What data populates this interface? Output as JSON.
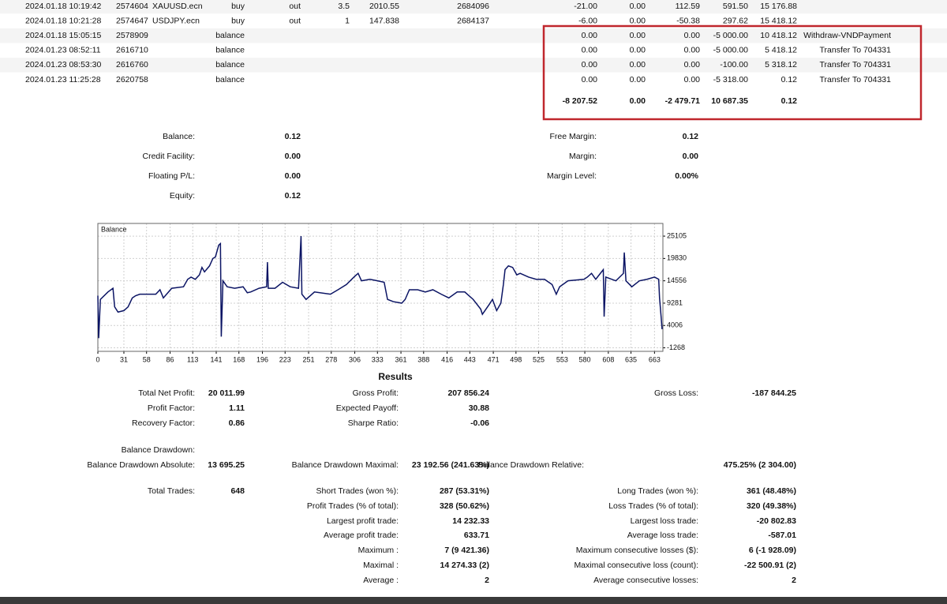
{
  "trades": {
    "rows": [
      {
        "time": "2024.01.18 10:19:42",
        "deal": "2574604",
        "symbol": "XAUUSD.ecn",
        "type": "buy",
        "direction": "out",
        "volume": "3.5",
        "price": "2010.55",
        "order": "2684096",
        "commission": "-21.00",
        "fee": "0.00",
        "swap": "112.59",
        "profit": "591.50",
        "balance": "15 176.88"
      },
      {
        "time": "2024.01.18 10:21:28",
        "deal": "2574647",
        "symbol": "USDJPY.ecn",
        "type": "buy",
        "direction": "out",
        "volume": "1",
        "price": "147.838",
        "order": "2684137",
        "commission": "-6.00",
        "fee": "0.00",
        "swap": "-50.38",
        "profit": "297.62",
        "balance": "15 418.12"
      },
      {
        "time": "2024.01.18 15:05:15",
        "deal": "2578909",
        "type": "balance",
        "commission": "0.00",
        "fee": "0.00",
        "swap": "0.00",
        "profit": "-5 000.00",
        "balance": "10 418.12",
        "comment": "Withdraw-VNDPayment"
      },
      {
        "time": "2024.01.23 08:52:11",
        "deal": "2616710",
        "type": "balance",
        "commission": "0.00",
        "fee": "0.00",
        "swap": "0.00",
        "profit": "-5 000.00",
        "balance": "5 418.12",
        "comment": "Transfer To 704331"
      },
      {
        "time": "2024.01.23 08:53:30",
        "deal": "2616760",
        "type": "balance",
        "commission": "0.00",
        "fee": "0.00",
        "swap": "0.00",
        "profit": "-100.00",
        "balance": "5 318.12",
        "comment": "Transfer To 704331"
      },
      {
        "time": "2024.01.23 11:25:28",
        "deal": "2620758",
        "type": "balance",
        "commission": "0.00",
        "fee": "0.00",
        "swap": "0.00",
        "profit": "-5 318.00",
        "balance": "0.12",
        "comment": "Transfer To 704331"
      }
    ],
    "totals": {
      "commission": "-8 207.52",
      "fee": "0.00",
      "swap": "-2 479.71",
      "profit": "10 687.35",
      "balance": "0.12"
    }
  },
  "summary": {
    "left": [
      {
        "label": "Balance:",
        "value": "0.12"
      },
      {
        "label": "Credit Facility:",
        "value": "0.00"
      },
      {
        "label": "Floating P/L:",
        "value": "0.00"
      },
      {
        "label": "Equity:",
        "value": "0.12"
      }
    ],
    "right": [
      {
        "label": "Free Margin:",
        "value": "0.12"
      },
      {
        "label": "Margin:",
        "value": "0.00"
      },
      {
        "label": "Margin Level:",
        "value": "0.00%"
      }
    ]
  },
  "chart_data": {
    "type": "line",
    "x": [
      0,
      1,
      3,
      12,
      18,
      20,
      24,
      31,
      36,
      41,
      45,
      50,
      69,
      74,
      78,
      88,
      102,
      107,
      111,
      116,
      121,
      124,
      127,
      133,
      137,
      140,
      144,
      146,
      147,
      149,
      154,
      163,
      173,
      178,
      182,
      192,
      201,
      202,
      203,
      211,
      220,
      229,
      239,
      242,
      243,
      248,
      258,
      277,
      286,
      296,
      305,
      310,
      314,
      324,
      333,
      341,
      345,
      352,
      362,
      366,
      371,
      381,
      390,
      399,
      409,
      418,
      428,
      437,
      447,
      456,
      458,
      466,
      470,
      475,
      480,
      483,
      485,
      489,
      494,
      499,
      503,
      513,
      522,
      532,
      541,
      546,
      550,
      560,
      579,
      583,
      588,
      593,
      602,
      603,
      605,
      617,
      626,
      627,
      629,
      636,
      645,
      654,
      663,
      668,
      669,
      671,
      672
    ],
    "series": [
      {
        "name": "Balance",
        "color": "#0b1464",
        "values": [
          11040,
          1016,
          10159,
          11918,
          12797,
          8401,
          7170,
          7522,
          8401,
          10511,
          11039,
          11391,
          11391,
          12445,
          10511,
          12797,
          13149,
          14907,
          15434,
          14907,
          15962,
          17720,
          16665,
          18072,
          19830,
          20182,
          22995,
          23347,
          1368,
          14555,
          13149,
          12797,
          13149,
          11742,
          11918,
          12797,
          13149,
          18951,
          12797,
          12797,
          14204,
          13149,
          12797,
          25105,
          11391,
          10159,
          11918,
          11391,
          12445,
          13676,
          15434,
          16313,
          14555,
          14907,
          14555,
          14204,
          10159,
          9632,
          9280,
          10159,
          12445,
          12445,
          11918,
          12445,
          11391,
          10511,
          11918,
          11918,
          10159,
          7874,
          6643,
          8929,
          10159,
          7522,
          9280,
          13676,
          17193,
          18072,
          17720,
          15962,
          16313,
          15434,
          14907,
          14907,
          13676,
          11391,
          13149,
          14555,
          14907,
          15434,
          16313,
          14907,
          17193,
          6115,
          15434,
          14555,
          16313,
          21237,
          14555,
          13149,
          14555,
          14907,
          15434,
          14907,
          10511,
          5764,
          3126
        ]
      }
    ],
    "xlim": [
      0,
      673
    ],
    "xticks": [
      0,
      31,
      58,
      86,
      113,
      141,
      168,
      196,
      223,
      251,
      278,
      306,
      333,
      361,
      388,
      416,
      443,
      471,
      498,
      525,
      553,
      580,
      608,
      635,
      663
    ],
    "ylim": [
      -2100,
      28100
    ],
    "yticks": [
      25105,
      19830,
      14556,
      9281,
      4006,
      -1268
    ],
    "grid": true
  },
  "results": {
    "title": "Results",
    "columns": [
      [
        {
          "label": "Total Net Profit:",
          "value": "20 011.99"
        },
        {
          "label": "Profit Factor:",
          "value": "1.11"
        },
        {
          "label": "Recovery Factor:",
          "value": "0.86"
        },
        {
          "label": "Balance Drawdown:"
        },
        {
          "label": "Balance Drawdown Absolute:",
          "value": "13 695.25"
        },
        {
          "label": "Total Trades:",
          "value": "648"
        }
      ],
      [
        {
          "label": "Gross Profit:",
          "value": "207 856.24"
        },
        {
          "label": "Expected Payoff:",
          "value": "30.88"
        },
        {
          "label": "Sharpe Ratio:",
          "value": "-0.06"
        },
        {
          "label": "Balance Drawdown Maximal:",
          "value": "23 192.56 (241.63%)"
        },
        {
          "label": "Short Trades (won %):",
          "value": "287 (53.31%)"
        },
        {
          "label": "Profit Trades (% of total):",
          "value": "328 (50.62%)"
        },
        {
          "label": "Largest profit trade:",
          "value": "14 232.33"
        },
        {
          "label": "Average profit trade:",
          "value": "633.71"
        },
        {
          "label": "Maximum :",
          "value": "7 (9 421.36)"
        },
        {
          "label": "Maximal :",
          "value": "14 274.33 (2)"
        },
        {
          "label": "Average :",
          "value": "2"
        }
      ],
      [
        {
          "label": "Gross Loss:",
          "value": "-187 844.25"
        },
        {
          "label": "Balance Drawdown Relative:",
          "value": "475.25% (2 304.00)"
        },
        {
          "label": "Long Trades (won %):",
          "value": "361 (48.48%)"
        },
        {
          "label": "Loss Trades (% of total):",
          "value": "320 (49.38%)"
        },
        {
          "label": "Largest loss trade:",
          "value": "-20 802.83"
        },
        {
          "label": "Average loss trade:",
          "value": "-587.01"
        },
        {
          "label": "Maximum consecutive losses ($):",
          "value": "6 (-1 928.09)"
        },
        {
          "label": "Maximal consecutive loss (count):",
          "value": "-22 500.91 (2)"
        },
        {
          "label": "Average consecutive losses:",
          "value": "2"
        }
      ]
    ]
  }
}
